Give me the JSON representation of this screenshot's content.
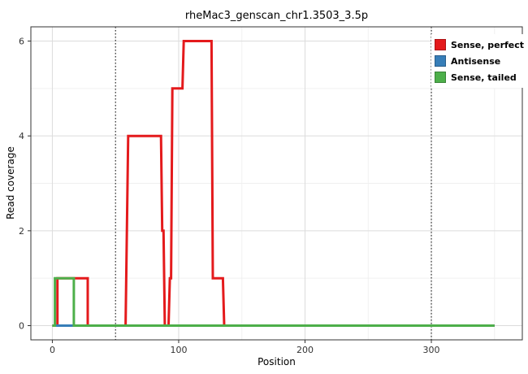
{
  "title": "rheMac3_genscan_chr1.3503_3.5p",
  "axes": {
    "xlabel": "Position",
    "ylabel": "Read coverage"
  },
  "legend": {
    "entries": [
      {
        "label": "Sense, perfect",
        "color": "#e41a1c"
      },
      {
        "label": "Antisense",
        "color": "#377eb8"
      },
      {
        "label": "Sense, tailed",
        "color": "#4daf4a"
      }
    ]
  },
  "chart_data": {
    "type": "line",
    "title": "rheMac3_genscan_chr1.3503_3.5p",
    "xlabel": "Position",
    "ylabel": "Read coverage",
    "xlim": [
      -17,
      372
    ],
    "ylim": [
      -0.3,
      6.3
    ],
    "x_major_ticks": [
      0,
      100,
      200,
      300
    ],
    "x_minor_ticks": [
      50,
      150,
      250,
      350
    ],
    "y_major_ticks": [
      0,
      2,
      4,
      6
    ],
    "y_minor_ticks": [
      1,
      3,
      5
    ],
    "vlines": [
      50,
      300
    ],
    "vline_style": "dotted",
    "grid": true,
    "legend_position": "top-right-inside",
    "line_width": 3,
    "series": [
      {
        "name": "Sense, perfect",
        "color": "#e41a1c",
        "points": [
          [
            0,
            0
          ],
          [
            4,
            0
          ],
          [
            4,
            1
          ],
          [
            28,
            1
          ],
          [
            28,
            0
          ],
          [
            58,
            0
          ],
          [
            60,
            4
          ],
          [
            86,
            4
          ],
          [
            87,
            2
          ],
          [
            88,
            2
          ],
          [
            89,
            0
          ],
          [
            92,
            0
          ],
          [
            93,
            1
          ],
          [
            94,
            1
          ],
          [
            95,
            5
          ],
          [
            103,
            5
          ],
          [
            104,
            6
          ],
          [
            126,
            6
          ],
          [
            127,
            1
          ],
          [
            135,
            1
          ],
          [
            136,
            0
          ],
          [
            350,
            0
          ]
        ]
      },
      {
        "name": "Antisense",
        "color": "#377eb8",
        "points": [
          [
            0,
            0
          ],
          [
            350,
            0
          ]
        ]
      },
      {
        "name": "Sense, tailed",
        "color": "#4daf4a",
        "points": [
          [
            0,
            0
          ],
          [
            2,
            0
          ],
          [
            2,
            1
          ],
          [
            17,
            1
          ],
          [
            17,
            0
          ],
          [
            350,
            0
          ]
        ]
      }
    ]
  }
}
